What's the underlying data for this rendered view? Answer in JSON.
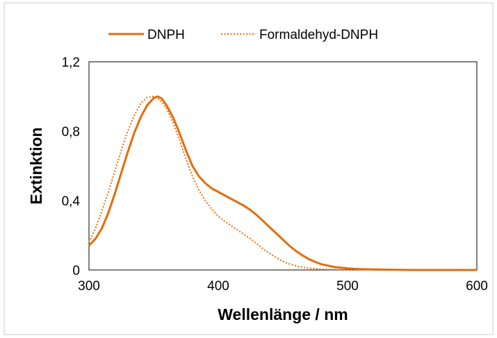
{
  "chart_data": {
    "type": "line",
    "title": "",
    "xlabel": "Wellenlänge / nm",
    "ylabel": "Extinktion",
    "xlim": [
      300,
      600
    ],
    "ylim": [
      0,
      1.2
    ],
    "x_ticks": [
      "300",
      "400",
      "500",
      "600"
    ],
    "y_ticks": [
      "0",
      "0,4",
      "0,8",
      "1,2"
    ],
    "grid": false,
    "legend_position": "top",
    "series": [
      {
        "name": "DNPH",
        "style": "solid",
        "color": "#E46C0A",
        "x": [
          300,
          305,
          310,
          315,
          320,
          325,
          330,
          335,
          340,
          345,
          350,
          353,
          356,
          360,
          365,
          370,
          375,
          380,
          385,
          390,
          395,
          400,
          405,
          410,
          415,
          420,
          425,
          430,
          435,
          440,
          445,
          450,
          455,
          460,
          465,
          470,
          475,
          480,
          490,
          500,
          510,
          520,
          530,
          540,
          550,
          560,
          570,
          580,
          590,
          600
        ],
        "y": [
          0.14,
          0.18,
          0.24,
          0.33,
          0.44,
          0.56,
          0.68,
          0.79,
          0.88,
          0.95,
          0.99,
          1.0,
          0.99,
          0.95,
          0.88,
          0.79,
          0.69,
          0.6,
          0.54,
          0.5,
          0.47,
          0.45,
          0.43,
          0.41,
          0.39,
          0.37,
          0.345,
          0.315,
          0.28,
          0.245,
          0.21,
          0.175,
          0.14,
          0.11,
          0.085,
          0.063,
          0.046,
          0.033,
          0.017,
          0.009,
          0.005,
          0.003,
          0.002,
          0.001,
          0.0,
          0.0,
          0.0,
          0.0,
          0.0,
          0.0
        ]
      },
      {
        "name": "Formaldehyd-DNPH",
        "style": "dotted",
        "color": "#E46C0A",
        "x": [
          300,
          305,
          310,
          315,
          320,
          325,
          330,
          335,
          340,
          345,
          350,
          355,
          360,
          365,
          370,
          375,
          380,
          385,
          390,
          395,
          400,
          405,
          410,
          415,
          420,
          425,
          430,
          435,
          440,
          445,
          450,
          455,
          460,
          465,
          470,
          480,
          490,
          500,
          510,
          520,
          530,
          540,
          550,
          560,
          580,
          600
        ],
        "y": [
          0.16,
          0.24,
          0.34,
          0.45,
          0.57,
          0.69,
          0.8,
          0.89,
          0.96,
          0.995,
          1.0,
          0.98,
          0.93,
          0.85,
          0.75,
          0.64,
          0.54,
          0.46,
          0.4,
          0.35,
          0.31,
          0.28,
          0.255,
          0.23,
          0.205,
          0.18,
          0.15,
          0.12,
          0.095,
          0.07,
          0.05,
          0.035,
          0.024,
          0.016,
          0.01,
          0.005,
          0.003,
          0.002,
          0.001,
          0.0,
          0.0,
          0.0,
          0.0,
          0.0,
          0.0,
          0.0
        ]
      }
    ]
  }
}
